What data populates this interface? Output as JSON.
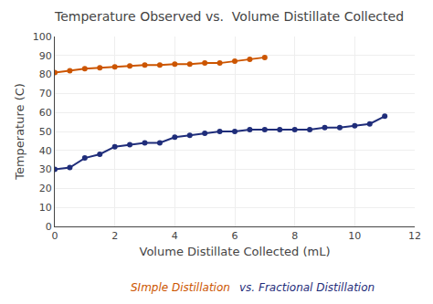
{
  "chart_data": {
    "type": "line",
    "title": "Temperature Observed vs.  Volume Distillate Collected",
    "xlabel": "Volume Distillate Collected (mL)",
    "ylabel": "Temperature (C)",
    "xlim": [
      0,
      12
    ],
    "ylim": [
      0,
      100
    ],
    "xticks": [
      0,
      2,
      4,
      6,
      8,
      10,
      12
    ],
    "yticks": [
      0,
      10,
      20,
      30,
      40,
      50,
      60,
      70,
      80,
      90,
      100
    ],
    "grid": true,
    "series": [
      {
        "name": "SImple Distillation",
        "color": "#cc5500",
        "marker": "circle",
        "x": [
          0,
          0.5,
          1,
          1.5,
          2,
          2.5,
          3,
          3.5,
          4,
          4.5,
          5,
          5.5,
          6,
          6.5,
          7
        ],
        "values": [
          81,
          82,
          83,
          83.5,
          84,
          84.5,
          85,
          85,
          85.5,
          85.5,
          86,
          86,
          87,
          88,
          89
        ]
      },
      {
        "name": "vs. Fractional Distillation",
        "color": "#1f2d7a",
        "marker": "circle",
        "x": [
          0,
          0.5,
          1,
          1.5,
          2,
          2.5,
          3,
          3.5,
          4,
          4.5,
          5,
          5.5,
          6,
          6.5,
          7,
          7.5,
          8,
          8.5,
          9,
          9.5,
          10,
          10.5,
          11
        ],
        "values": [
          30,
          31,
          36,
          38,
          42,
          43,
          44,
          44,
          47,
          48,
          49,
          50,
          50,
          51,
          51,
          51,
          51,
          51,
          52,
          52,
          53,
          54,
          58
        ]
      }
    ]
  }
}
